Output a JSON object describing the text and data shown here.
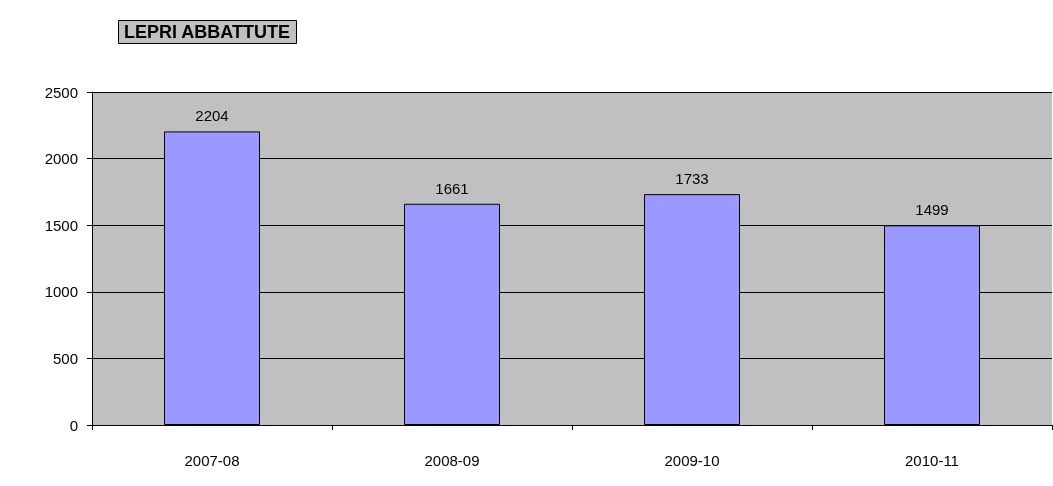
{
  "chart_data": {
    "type": "bar",
    "title": "LEPRI ABBATTUTE",
    "categories": [
      "2007-08",
      "2008-09",
      "2009-10",
      "2010-11"
    ],
    "values": [
      2204,
      1661,
      1733,
      1499
    ],
    "color": "#9999ff",
    "ylim": [
      0,
      2500
    ],
    "yticks": [
      0,
      500,
      1000,
      1500,
      2000,
      2500
    ],
    "grid": "y",
    "data_labels": true
  }
}
